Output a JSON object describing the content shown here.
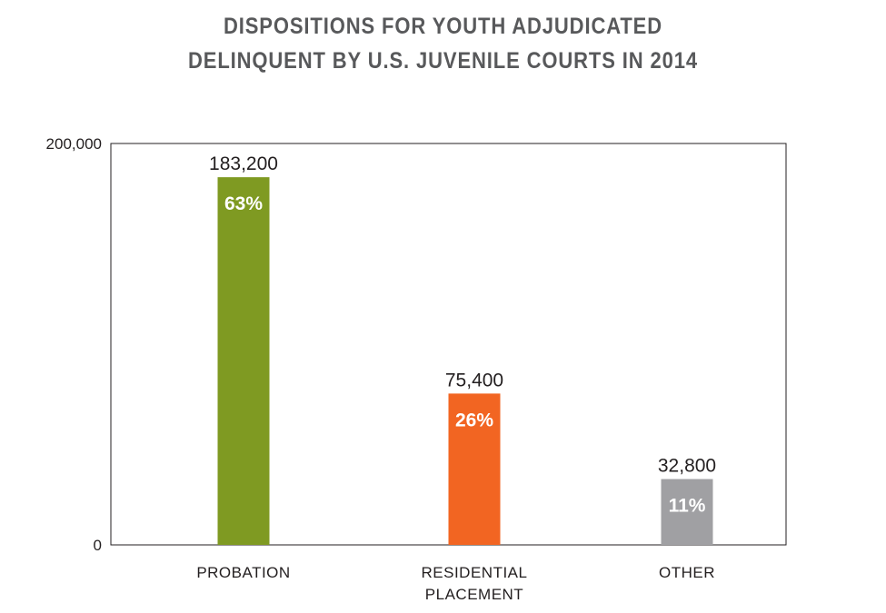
{
  "chart_data": {
    "type": "bar",
    "title_lines": [
      "DISPOSITIONS FOR YOUTH ADJUDICATED",
      "DELINQUENT BY U.S. JUVENILE COURTS IN 2014"
    ],
    "categories": [
      [
        "PROBATION"
      ],
      [
        "RESIDENTIAL",
        "PLACEMENT"
      ],
      [
        "OTHER"
      ]
    ],
    "values": [
      183200,
      75400,
      32800
    ],
    "value_labels": [
      "183,200",
      "75,400",
      "32,800"
    ],
    "percent_labels": [
      "63%",
      "26%",
      "11%"
    ],
    "colors": [
      "#7f9a22",
      "#f26522",
      "#a0a0a3"
    ],
    "ylim": [
      0,
      200000
    ],
    "yticks": [
      {
        "value": 0,
        "label": "0"
      },
      {
        "value": 200000,
        "label": "200,000"
      }
    ],
    "xlabel": "",
    "ylabel": "",
    "grid": false,
    "legend": "none"
  }
}
